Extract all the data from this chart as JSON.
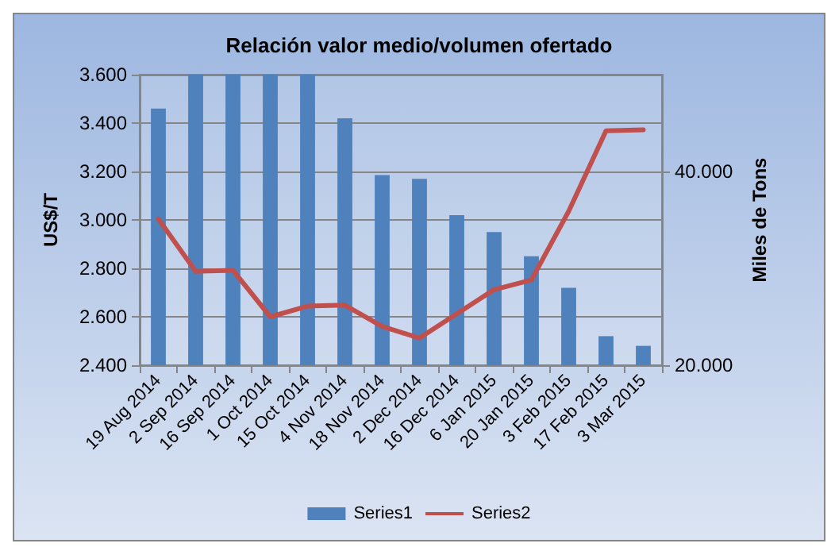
{
  "chart_data": {
    "type": "bar",
    "title": "Relación valor medio/volumen ofertado",
    "ylabel": "US$/T",
    "y2label": "Miles de Tons",
    "categories": [
      "19 Aug 2014",
      "2 Sep 2014",
      "16 Sep 2014",
      "1 Oct 2014",
      "15 Oct 2014",
      "4 Nov 2014",
      "18 Nov 2014",
      "2 Dec 2014",
      "16 Dec 2014",
      "6 Jan 2015",
      "20 Jan 2015",
      "3 Feb 2015",
      "17 Feb 2015",
      "3 Mar 2015"
    ],
    "series": [
      {
        "name": "Series1",
        "color": "#4f81bd",
        "values": [
          3460,
          3600,
          3600,
          3600,
          3600,
          3420,
          3185,
          3170,
          3020,
          2950,
          2850,
          2720,
          2520,
          2480
        ]
      },
      {
        "name": "Series2",
        "type": "line",
        "axis": "y2",
        "color": "#c0504d",
        "values": [
          35100,
          29700,
          29800,
          25000,
          26100,
          26200,
          24000,
          22800,
          25300,
          27800,
          28800,
          35900,
          44200,
          44300
        ]
      }
    ],
    "ylim": [
      2400,
      3600
    ],
    "yticks": [
      {
        "value": 2400,
        "label": "2.400"
      },
      {
        "value": 2600,
        "label": "2.600"
      },
      {
        "value": 2800,
        "label": "2.800"
      },
      {
        "value": 3000,
        "label": "3.000"
      },
      {
        "value": 3200,
        "label": "3.200"
      },
      {
        "value": 3400,
        "label": "3.400"
      },
      {
        "value": 3600,
        "label": "3.600"
      }
    ],
    "y2lim": [
      20000,
      50000
    ],
    "y2ticks": [
      {
        "value": 20000,
        "label": "20.000"
      },
      {
        "value": 40000,
        "label": "40.000"
      }
    ],
    "grid": "y",
    "legend": "bottom",
    "marker": "none",
    "line_style": "solid"
  }
}
